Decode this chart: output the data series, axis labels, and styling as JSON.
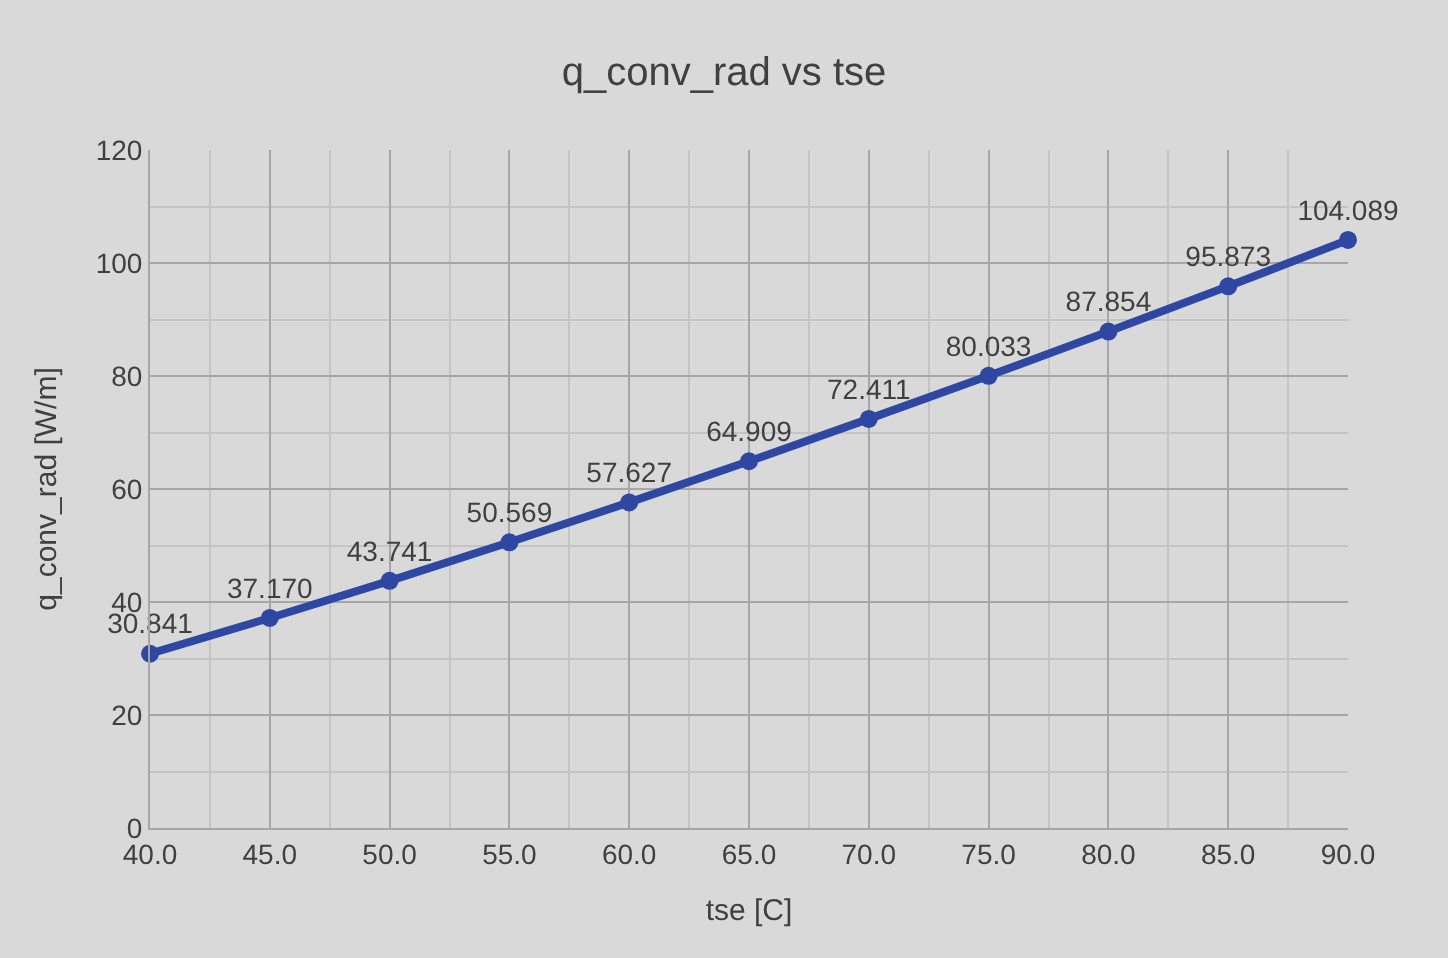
{
  "chart_data": {
    "type": "line",
    "title": "q_conv_rad vs tse",
    "xlabel": "tse [C]",
    "ylabel": "q_conv_rad [W/m]",
    "x": [
      40,
      45,
      50,
      55,
      60,
      65,
      70,
      75,
      80,
      85,
      90
    ],
    "series": [
      {
        "color": "#2e47a3",
        "values": [
          30.841,
          37.17,
          43.741,
          50.569,
          57.627,
          64.909,
          72.411,
          80.033,
          87.854,
          95.873,
          104.089
        ],
        "value_labels": [
          "30.841",
          "37.170",
          "43.741",
          "50.569",
          "57.627",
          "64.909",
          "72.411",
          "80.033",
          "87.854",
          "95.873",
          "104.089"
        ]
      }
    ],
    "xlim": [
      40,
      90
    ],
    "xticks": [
      {
        "value": 40,
        "label": "40.0"
      },
      {
        "value": 45,
        "label": "45.0"
      },
      {
        "value": 50,
        "label": "50.0"
      },
      {
        "value": 55,
        "label": "55.0"
      },
      {
        "value": 60,
        "label": "60.0"
      },
      {
        "value": 65,
        "label": "65.0"
      },
      {
        "value": 70,
        "label": "70.0"
      },
      {
        "value": 75,
        "label": "75.0"
      },
      {
        "value": 80,
        "label": "80.0"
      },
      {
        "value": 85,
        "label": "85.0"
      },
      {
        "value": 90,
        "label": "90.0"
      }
    ],
    "ylim": [
      0,
      120
    ],
    "yticks": [
      0,
      20,
      40,
      60,
      80,
      100,
      120
    ],
    "grid": true,
    "marker": "circle",
    "line_style": "solid",
    "legend": false
  }
}
